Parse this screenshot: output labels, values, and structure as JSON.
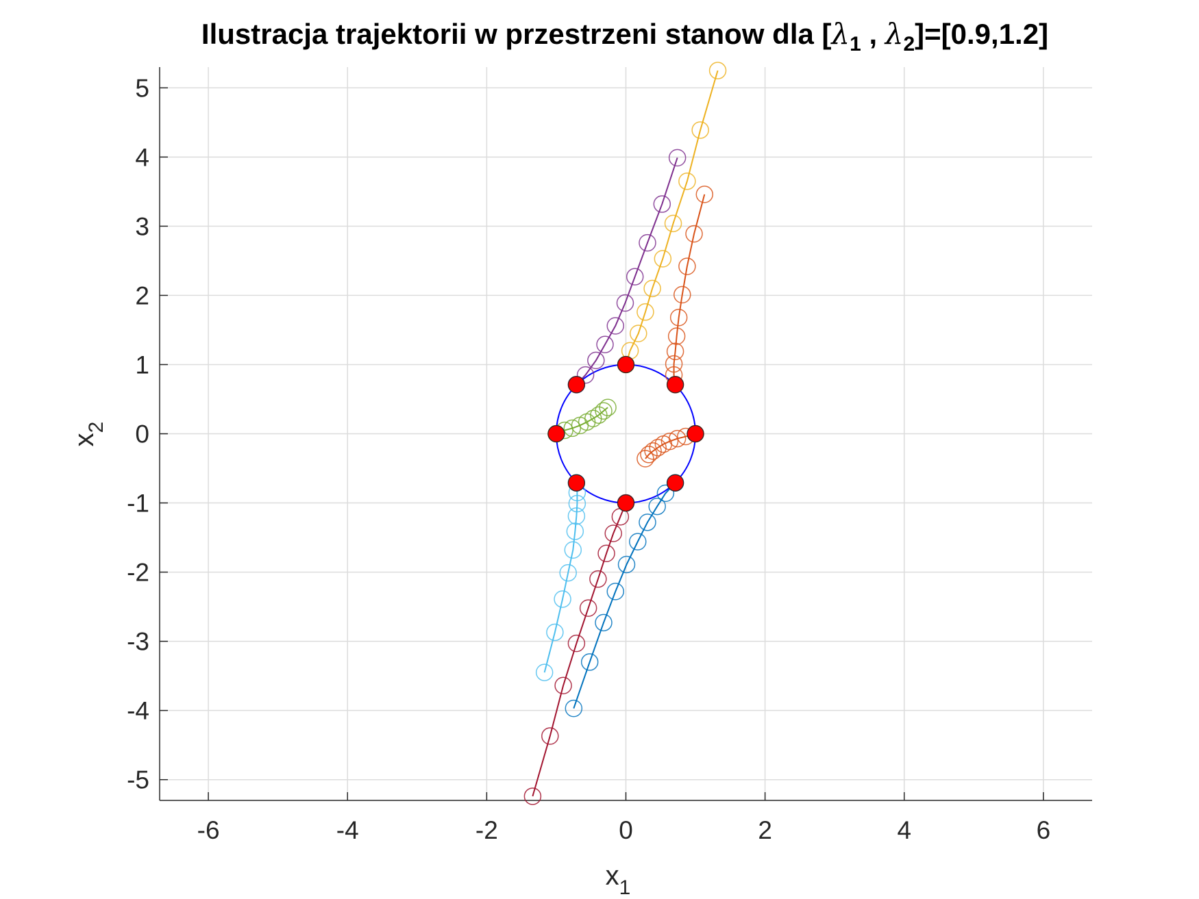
{
  "chart_data": {
    "type": "line",
    "title": {
      "prefix": "Ilustracja trajektorii w przestrzeni stanow dla [",
      "sym1": "λ",
      "sub1": "1",
      "sep": " , ",
      "sym2": "λ",
      "sub2": "2",
      "suffix": "]=[0.9,1.2]"
    },
    "xlabel": {
      "base": "x",
      "sub": "1"
    },
    "ylabel": {
      "base": "x",
      "sub": "2"
    },
    "xlim": [
      -6.7,
      6.7
    ],
    "ylim": [
      -5.3,
      5.3
    ],
    "xticks": [
      -6,
      -4,
      -2,
      0,
      2,
      4,
      6
    ],
    "yticks": [
      -5,
      -4,
      -3,
      -2,
      -1,
      0,
      1,
      2,
      3,
      4,
      5
    ],
    "grid": true,
    "unit_circle": {
      "radius": 1,
      "color": "#0000ff"
    },
    "start_marker_color": "#ff0000",
    "series": [
      {
        "color": "#0072BD",
        "points": [
          [
            0.71,
            -0.71
          ],
          [
            0.57,
            -0.86
          ],
          [
            0.45,
            -1.05
          ],
          [
            0.31,
            -1.28
          ],
          [
            0.17,
            -1.56
          ],
          [
            0.01,
            -1.89
          ],
          [
            -0.15,
            -2.28
          ],
          [
            -0.32,
            -2.73
          ],
          [
            -0.52,
            -3.3
          ],
          [
            -0.75,
            -3.97
          ]
        ]
      },
      {
        "color": "#D95319",
        "points": [
          [
            1.0,
            0.0
          ],
          [
            0.86,
            -0.04
          ],
          [
            0.74,
            -0.07
          ],
          [
            0.63,
            -0.11
          ],
          [
            0.54,
            -0.15
          ],
          [
            0.46,
            -0.2
          ],
          [
            0.39,
            -0.25
          ],
          [
            0.33,
            -0.3
          ],
          [
            0.28,
            -0.36
          ]
        ]
      },
      {
        "color": "#EDB120",
        "points": [
          [
            0.0,
            1.0
          ],
          [
            0.06,
            1.2
          ],
          [
            0.18,
            1.45
          ],
          [
            0.28,
            1.76
          ],
          [
            0.38,
            2.1
          ],
          [
            0.53,
            2.53
          ],
          [
            0.68,
            3.04
          ],
          [
            0.88,
            3.65
          ],
          [
            1.07,
            4.39
          ],
          [
            1.32,
            5.25
          ]
        ]
      },
      {
        "color": "#7E2F8E",
        "points": [
          [
            -0.71,
            0.71
          ],
          [
            -0.58,
            0.85
          ],
          [
            -0.43,
            1.06
          ],
          [
            -0.3,
            1.29
          ],
          [
            -0.15,
            1.56
          ],
          [
            -0.01,
            1.89
          ],
          [
            0.13,
            2.27
          ],
          [
            0.31,
            2.76
          ],
          [
            0.52,
            3.32
          ],
          [
            0.74,
            3.99
          ]
        ]
      },
      {
        "color": "#77AC30",
        "points": [
          [
            -1.0,
            0.0
          ],
          [
            -0.88,
            0.05
          ],
          [
            -0.77,
            0.08
          ],
          [
            -0.66,
            0.12
          ],
          [
            -0.56,
            0.17
          ],
          [
            -0.47,
            0.22
          ],
          [
            -0.39,
            0.27
          ],
          [
            -0.32,
            0.33
          ],
          [
            -0.26,
            0.38
          ]
        ]
      },
      {
        "color": "#4DBEEE",
        "points": [
          [
            -0.71,
            -0.71
          ],
          [
            -0.7,
            -0.85
          ],
          [
            -0.7,
            -1.01
          ],
          [
            -0.71,
            -1.19
          ],
          [
            -0.73,
            -1.41
          ],
          [
            -0.76,
            -1.68
          ],
          [
            -0.83,
            -2.01
          ],
          [
            -0.91,
            -2.39
          ],
          [
            -1.02,
            -2.87
          ],
          [
            -1.17,
            -3.45
          ]
        ]
      },
      {
        "color": "#A2142F",
        "points": [
          [
            0.0,
            -1.0
          ],
          [
            -0.08,
            -1.2
          ],
          [
            -0.18,
            -1.44
          ],
          [
            -0.28,
            -1.73
          ],
          [
            -0.4,
            -2.1
          ],
          [
            -0.54,
            -2.52
          ],
          [
            -0.71,
            -3.03
          ],
          [
            -0.9,
            -3.64
          ],
          [
            -1.09,
            -4.37
          ],
          [
            -1.34,
            -5.24
          ]
        ]
      },
      {
        "color": "#D95319",
        "points": [
          [
            0.71,
            0.71
          ],
          [
            0.69,
            0.85
          ],
          [
            0.69,
            1.01
          ],
          [
            0.71,
            1.19
          ],
          [
            0.73,
            1.41
          ],
          [
            0.76,
            1.68
          ],
          [
            0.81,
            2.01
          ],
          [
            0.88,
            2.42
          ],
          [
            0.98,
            2.89
          ],
          [
            1.13,
            3.46
          ]
        ]
      }
    ]
  }
}
